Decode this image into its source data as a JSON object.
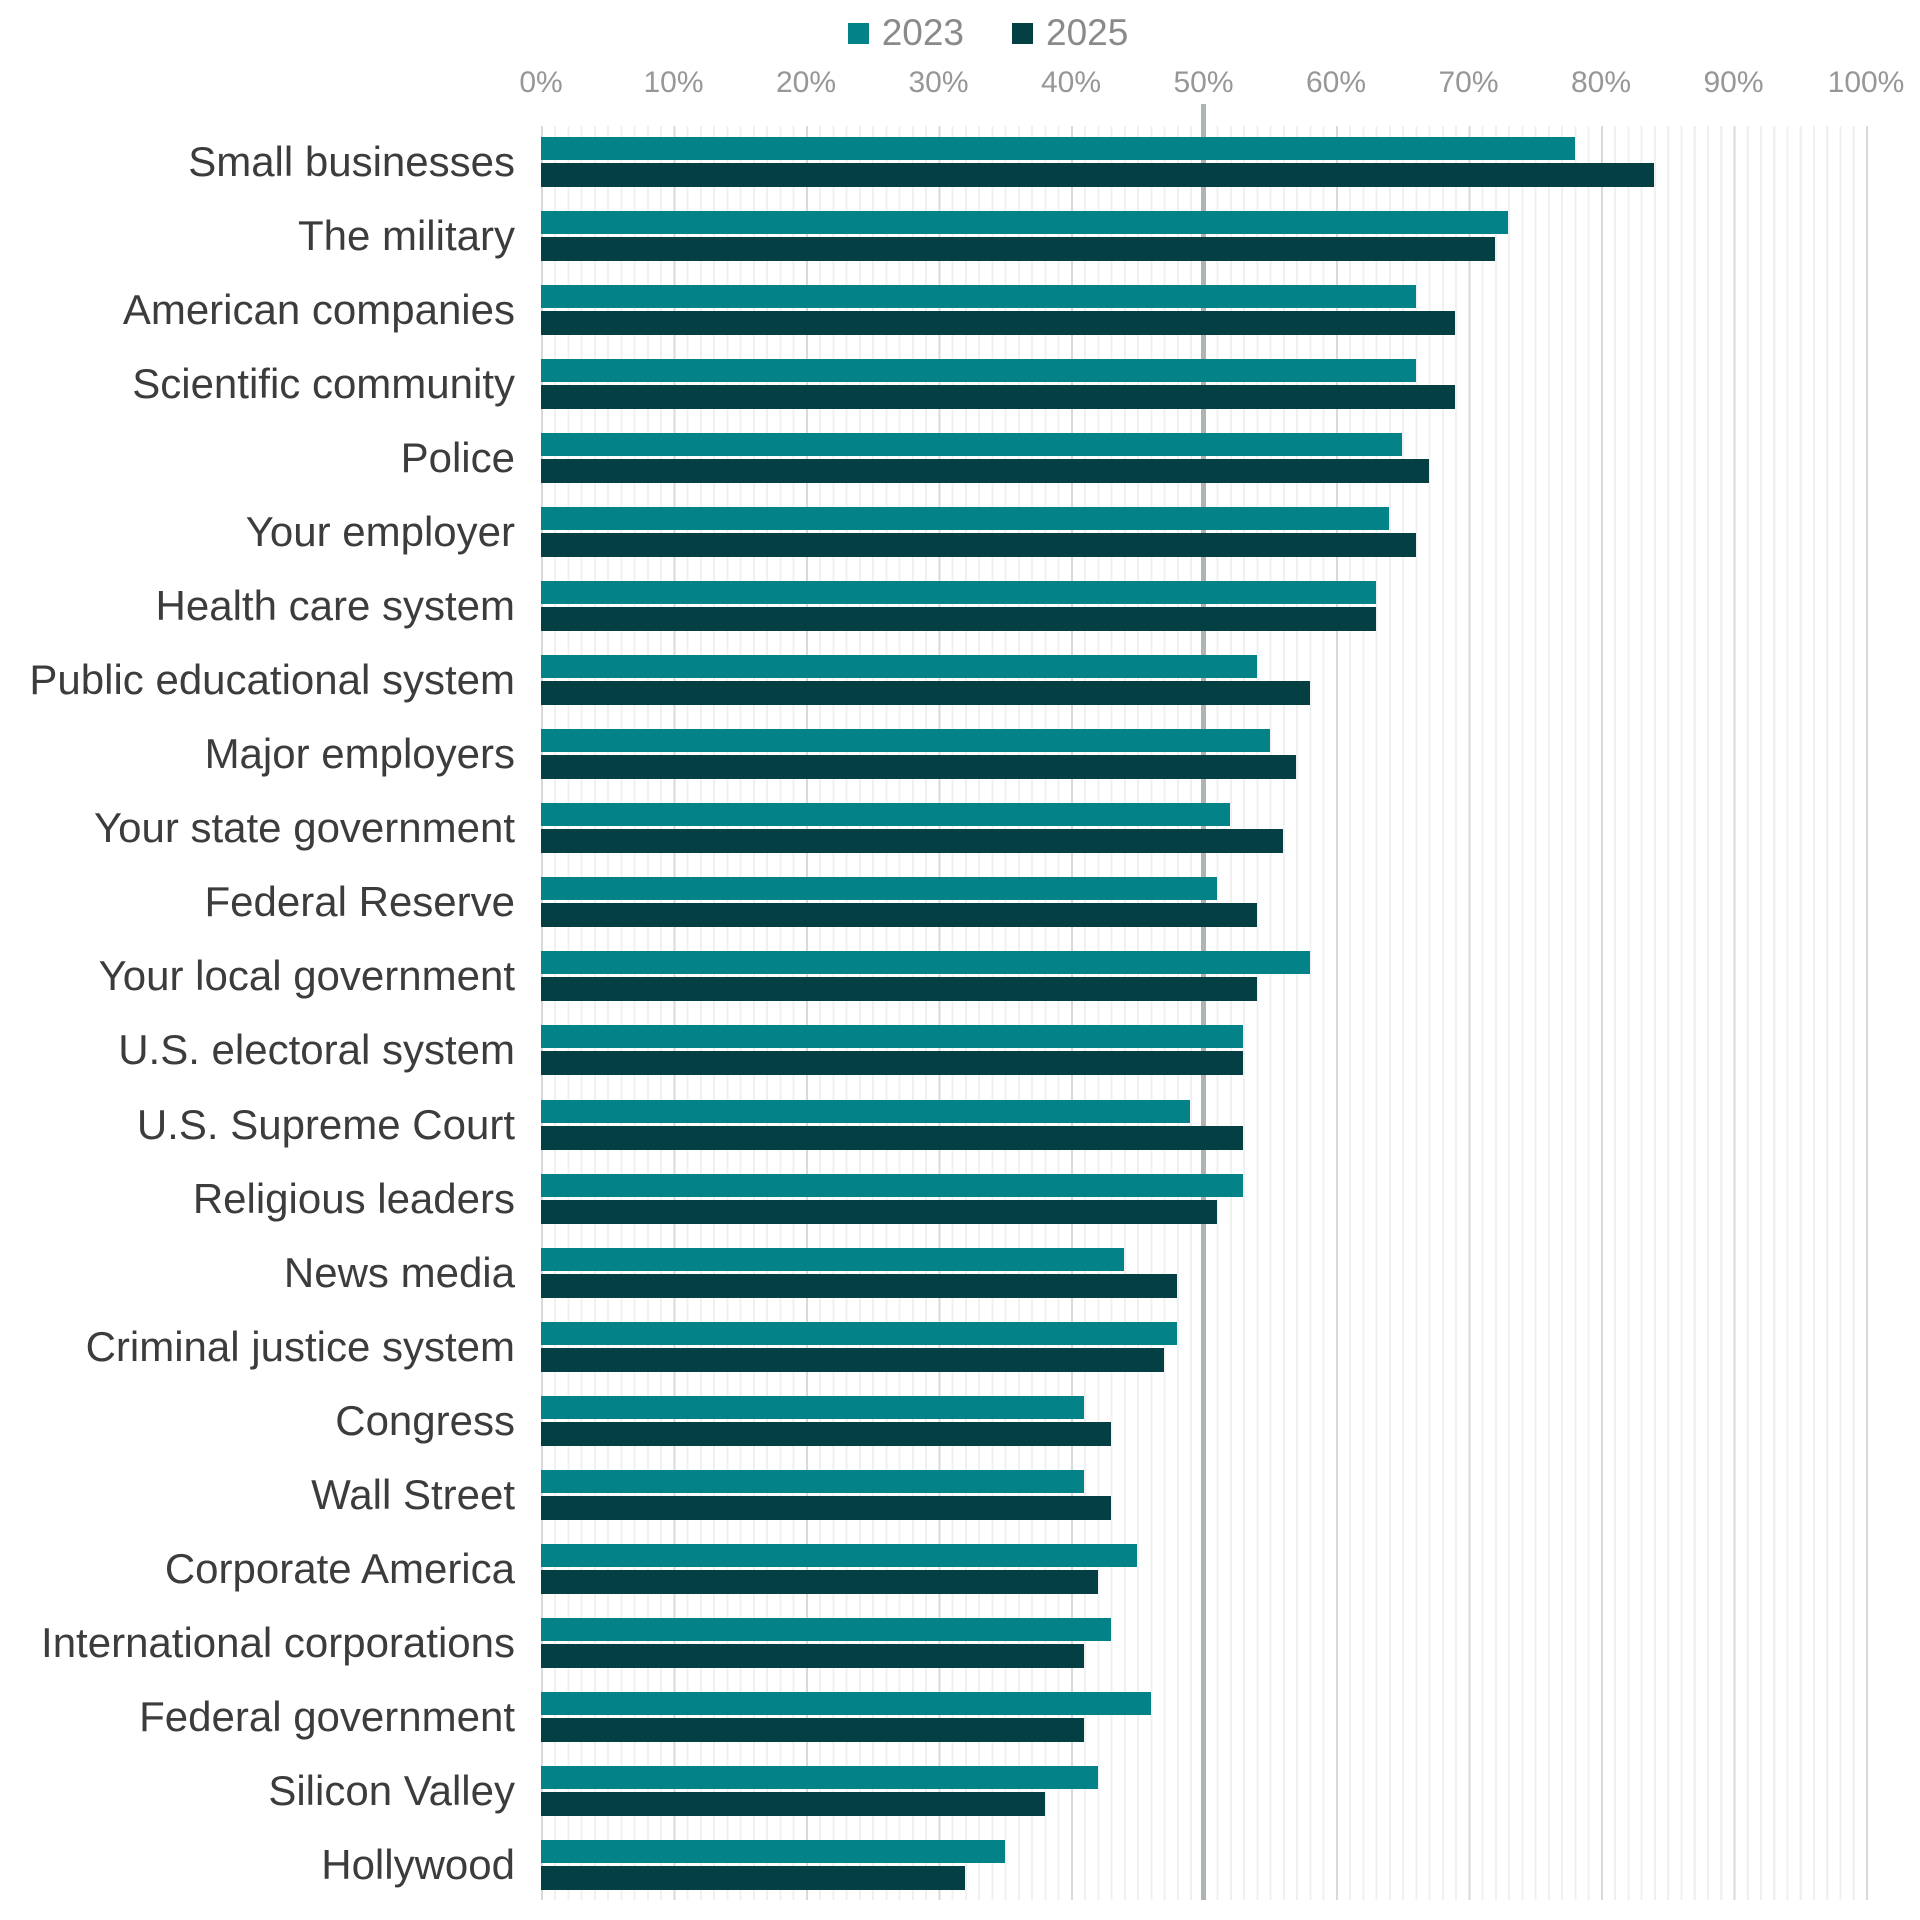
{
  "colors": {
    "series_2023": "#038387",
    "series_2025": "#044043",
    "legend_text": "#8a8a8a",
    "axis_text": "#979797",
    "category_text": "#3c3c3c",
    "major_gridline": "#d9d9d9",
    "minor_gridline": "#f0f0f0",
    "reference_line": "#aeb4b2",
    "background": "#ffffff"
  },
  "chart_data": {
    "type": "bar",
    "orientation": "horizontal",
    "title": "",
    "legend_position": "top",
    "categories": [
      "Small businesses",
      "The military",
      "American companies",
      "Scientific community",
      "Police",
      "Your employer",
      "Health care system",
      "Public educational system",
      "Major employers",
      "Your state government",
      "Federal Reserve",
      "Your local government",
      "U.S. electoral system",
      "U.S. Supreme Court",
      "Religious leaders",
      "News media",
      "Criminal justice system",
      "Congress",
      "Wall Street",
      "Corporate America",
      "International corporations",
      "Federal government",
      "Silicon Valley",
      "Hollywood"
    ],
    "series": [
      {
        "name": "2023",
        "color": "#038387",
        "values": [
          78,
          73,
          66,
          66,
          65,
          64,
          63,
          54,
          55,
          52,
          51,
          58,
          53,
          49,
          53,
          44,
          48,
          41,
          41,
          45,
          43,
          46,
          42,
          35
        ]
      },
      {
        "name": "2025",
        "color": "#044043",
        "values": [
          84,
          72,
          69,
          69,
          67,
          66,
          63,
          58,
          57,
          56,
          54,
          54,
          53,
          53,
          51,
          48,
          47,
          43,
          43,
          42,
          41,
          41,
          38,
          32
        ]
      }
    ],
    "x_axis": {
      "tick_labels": [
        "0%",
        "10%",
        "20%",
        "30%",
        "40%",
        "50%",
        "60%",
        "70%",
        "80%",
        "90%",
        "100%"
      ],
      "min": 0,
      "max": 100,
      "unit": "%",
      "major_gridline_step": 10,
      "minor_gridline_step": 1,
      "reference_line_value": 50
    }
  }
}
